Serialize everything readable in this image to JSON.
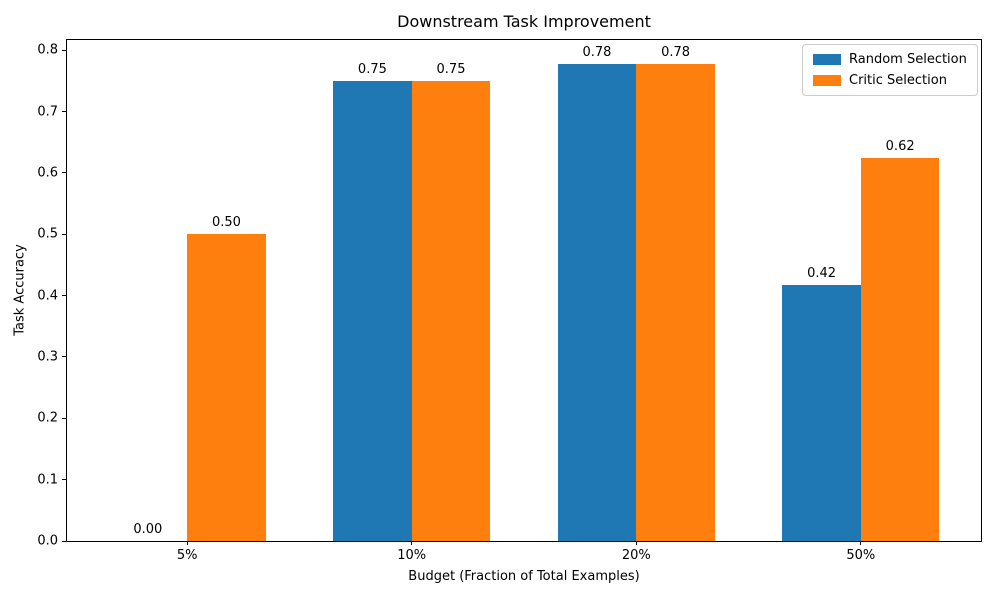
{
  "chart_data": {
    "type": "bar",
    "title": "Downstream Task Improvement",
    "xlabel": "Budget (Fraction of Total Examples)",
    "ylabel": "Task Accuracy",
    "categories": [
      "5%",
      "10%",
      "20%",
      "50%"
    ],
    "series": [
      {
        "name": "Random Selection",
        "color": "#1f77b4",
        "values": [
          0.0,
          0.75,
          0.778,
          0.417
        ],
        "bar_labels": [
          "0.00",
          "0.75",
          "0.78",
          "0.42"
        ]
      },
      {
        "name": "Critic Selection",
        "color": "#ff7f0e",
        "values": [
          0.5,
          0.75,
          0.778,
          0.625
        ],
        "bar_labels": [
          "0.50",
          "0.75",
          "0.78",
          "0.62"
        ]
      }
    ],
    "ylim": [
      0,
      0.8167
    ],
    "yticks": [
      0,
      0.1,
      0.2,
      0.3,
      0.4,
      0.5,
      0.6,
      0.7,
      0.8
    ],
    "bar_width": 0.35,
    "grid": false,
    "legend_position": "upper right"
  }
}
